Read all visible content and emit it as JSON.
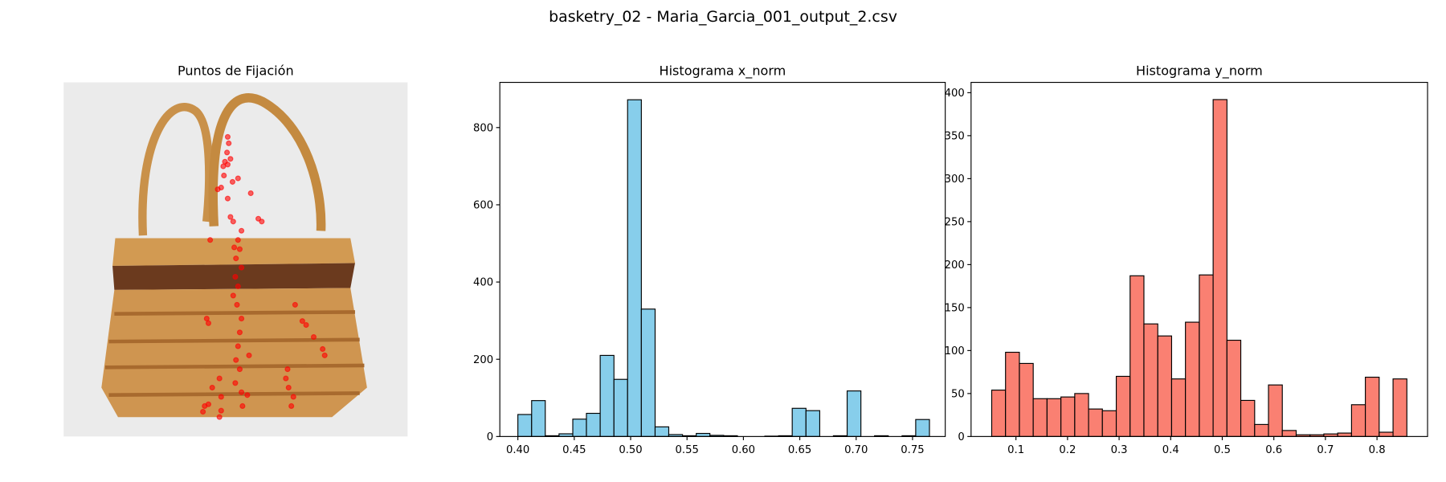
{
  "title": "basketry_02 - Maria_Garcia_001_output_2.csv",
  "chart_data": [
    {
      "type": "image-scatter",
      "title": "Puntos de Fijación",
      "color": "#ff0000",
      "xlim": [
        0,
        1
      ],
      "ylim": [
        1,
        0
      ],
      "x": [
        0.477,
        0.48,
        0.475,
        0.469,
        0.464,
        0.477,
        0.485,
        0.466,
        0.458,
        0.491,
        0.507,
        0.544,
        0.448,
        0.477,
        0.485,
        0.493,
        0.566,
        0.576,
        0.426,
        0.517,
        0.507,
        0.512,
        0.501,
        0.517,
        0.499,
        0.507,
        0.493,
        0.504,
        0.416,
        0.421,
        0.517,
        0.512,
        0.694,
        0.705,
        0.673,
        0.727,
        0.753,
        0.759,
        0.507,
        0.501,
        0.512,
        0.453,
        0.651,
        0.646,
        0.654,
        0.499,
        0.517,
        0.534,
        0.458,
        0.41,
        0.421,
        0.668,
        0.662,
        0.458,
        0.453,
        0.405,
        0.52,
        0.432,
        0.539,
        0.496
      ],
      "y": [
        0.154,
        0.172,
        0.198,
        0.224,
        0.237,
        0.232,
        0.216,
        0.263,
        0.297,
        0.281,
        0.271,
        0.313,
        0.302,
        0.328,
        0.38,
        0.393,
        0.385,
        0.393,
        0.445,
        0.419,
        0.445,
        0.471,
        0.497,
        0.523,
        0.549,
        0.576,
        0.602,
        0.628,
        0.667,
        0.68,
        0.667,
        0.706,
        0.674,
        0.685,
        0.628,
        0.719,
        0.753,
        0.771,
        0.745,
        0.784,
        0.81,
        0.836,
        0.81,
        0.836,
        0.862,
        0.849,
        0.875,
        0.883,
        0.888,
        0.914,
        0.909,
        0.888,
        0.914,
        0.927,
        0.945,
        0.93,
        0.914,
        0.862,
        0.771,
        0.466
      ]
    },
    {
      "type": "histogram",
      "title": "Histograma x_norm",
      "color": "#87ceeb",
      "edgecolor": "#000000",
      "bins": [
        0.4,
        0.4122,
        0.4243,
        0.4365,
        0.4487,
        0.4608,
        0.473,
        0.4852,
        0.4973,
        0.5095,
        0.5217,
        0.5338,
        0.546,
        0.5582,
        0.5703,
        0.5825,
        0.5947,
        0.6068,
        0.619,
        0.6312,
        0.6433,
        0.6555,
        0.6677,
        0.6798,
        0.692,
        0.7042,
        0.7163,
        0.7285,
        0.7407,
        0.7528,
        0.765
      ],
      "values": [
        57,
        93,
        2,
        7,
        45,
        60,
        210,
        148,
        872,
        330,
        25,
        5,
        2,
        8,
        3,
        2,
        0,
        0,
        1,
        2,
        73,
        67,
        0,
        2,
        118,
        0,
        2,
        0,
        2,
        44
      ],
      "xlim": [
        0.384,
        0.779
      ],
      "ylim": [
        0,
        917
      ],
      "xticks": [
        {
          "value": 0.4,
          "label": "0.40"
        },
        0.45,
        {
          "value": 0.5,
          "label": "0.50"
        },
        0.55,
        {
          "value": 0.6,
          "label": "0.60"
        },
        0.65,
        {
          "value": 0.7,
          "label": "0.70"
        },
        0.75
      ],
      "yticks": [
        0,
        200,
        400,
        600,
        800
      ]
    },
    {
      "type": "histogram",
      "title": "Histograma y_norm",
      "color": "#fa8072",
      "edgecolor": "#000000",
      "bins": [
        0.053,
        0.0798,
        0.1067,
        0.1335,
        0.1603,
        0.1872,
        0.214,
        0.2408,
        0.2676,
        0.2945,
        0.3213,
        0.3481,
        0.375,
        0.4018,
        0.4286,
        0.4555,
        0.4823,
        0.5091,
        0.5359,
        0.5628,
        0.5896,
        0.6164,
        0.6433,
        0.6701,
        0.6969,
        0.7238,
        0.7506,
        0.7774,
        0.8042,
        0.8311,
        0.8579
      ],
      "values": [
        54,
        98,
        85,
        44,
        44,
        46,
        50,
        32,
        30,
        70,
        187,
        131,
        117,
        67,
        133,
        188,
        392,
        112,
        42,
        14,
        60,
        7,
        2,
        2,
        3,
        4,
        37,
        69,
        5,
        67
      ],
      "xlim": [
        0.013,
        0.898
      ],
      "ylim": [
        0,
        412
      ],
      "xticks": [
        0.1,
        0.2,
        0.3,
        0.4,
        0.5,
        0.6,
        0.7,
        0.8
      ],
      "yticks": [
        0,
        50,
        100,
        150,
        200,
        250,
        300,
        350,
        400
      ]
    }
  ]
}
